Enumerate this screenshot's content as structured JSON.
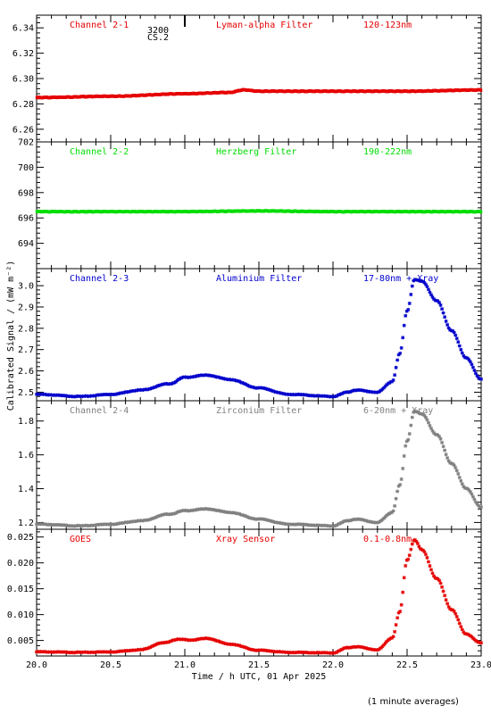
{
  "footer_note": "(1 minute averages)",
  "annotation": {
    "label_top": "3200",
    "label_bottom": "CS.2"
  },
  "shared_axes": {
    "xlabel": "Time / h UTC, 01 Apr 2025",
    "ylabel": "Calibrated Signal / (mW m⁻²)",
    "xlim": [
      20.0,
      23.0
    ],
    "xticks": [
      "20.0",
      "20.5",
      "21.0",
      "21.5",
      "22.0",
      "22.5",
      "23.0"
    ]
  },
  "chart_data": [
    {
      "type": "scatter",
      "title": "Lyman-alpha Filter",
      "channel": "Channel 2-1",
      "band": "120-123nm",
      "color": "#e60000",
      "ylim": [
        6.25,
        6.35
      ],
      "yticks": [
        "6.26",
        "6.28",
        "6.30",
        "6.32",
        "6.34"
      ],
      "series": [
        {
          "x": [
            20.0,
            20.5,
            21.0,
            21.3,
            21.4,
            21.5,
            22.0,
            22.5,
            23.0
          ],
          "y": [
            6.285,
            6.286,
            6.288,
            6.289,
            6.291,
            6.29,
            6.29,
            6.29,
            6.291
          ]
        }
      ]
    },
    {
      "type": "scatter",
      "title": "Herzberg Filter",
      "channel": "Channel 2-2",
      "band": "190-222nm",
      "color": "#00dd00",
      "ylim": [
        692.0,
        702.0
      ],
      "yticks": [
        "694",
        "696",
        "698",
        "700",
        "702"
      ],
      "series": [
        {
          "x": [
            20.0,
            20.5,
            21.0,
            21.5,
            22.0,
            22.5,
            23.0
          ],
          "y": [
            696.5,
            696.5,
            696.5,
            696.55,
            696.5,
            696.5,
            696.5
          ]
        }
      ]
    },
    {
      "type": "scatter",
      "title": "Aluminium Filter",
      "channel": "Channel 2-3",
      "band": "17-80nm + Xray",
      "color": "#0000cc",
      "ylim": [
        2.46,
        3.08
      ],
      "yticks": [
        "2.5",
        "2.6",
        "2.7",
        "2.8",
        "2.9",
        "3.0"
      ],
      "series": [
        {
          "x": [
            20.0,
            20.3,
            20.5,
            20.7,
            20.9,
            21.0,
            21.15,
            21.3,
            21.5,
            21.7,
            22.0,
            22.1,
            22.15,
            22.3,
            22.4,
            22.45,
            22.5,
            22.55,
            22.6,
            22.7,
            22.8,
            22.9,
            23.0
          ],
          "y": [
            2.49,
            2.48,
            2.49,
            2.51,
            2.54,
            2.57,
            2.58,
            2.56,
            2.52,
            2.49,
            2.48,
            2.5,
            2.51,
            2.5,
            2.55,
            2.68,
            2.88,
            3.03,
            3.02,
            2.93,
            2.79,
            2.66,
            2.56
          ]
        }
      ]
    },
    {
      "type": "scatter",
      "title": "Zirconium Filter",
      "channel": "Channel 2-4",
      "band": "6-20nm + Xray",
      "color": "#808080",
      "ylim": [
        1.16,
        1.92
      ],
      "yticks": [
        "1.2",
        "1.4",
        "1.6",
        "1.8"
      ],
      "series": [
        {
          "x": [
            20.0,
            20.3,
            20.5,
            20.7,
            20.9,
            21.0,
            21.15,
            21.3,
            21.5,
            21.7,
            22.0,
            22.1,
            22.15,
            22.3,
            22.4,
            22.45,
            22.5,
            22.55,
            22.6,
            22.7,
            22.8,
            22.9,
            23.0
          ],
          "y": [
            1.19,
            1.18,
            1.19,
            1.21,
            1.25,
            1.27,
            1.28,
            1.26,
            1.22,
            1.19,
            1.18,
            1.21,
            1.22,
            1.2,
            1.26,
            1.42,
            1.68,
            1.86,
            1.84,
            1.72,
            1.55,
            1.4,
            1.29
          ]
        }
      ]
    },
    {
      "type": "scatter",
      "title": "Xray Sensor",
      "channel": "GOES",
      "band": "0.1-0.8nm",
      "color": "#e60000",
      "ylim": [
        0.002,
        0.0265
      ],
      "yticks": [
        "0.005",
        "0.010",
        "0.015",
        "0.020",
        "0.025"
      ],
      "series": [
        {
          "x": [
            20.0,
            20.3,
            20.5,
            20.7,
            20.85,
            20.95,
            21.05,
            21.15,
            21.3,
            21.5,
            21.7,
            22.0,
            22.1,
            22.15,
            22.3,
            22.4,
            22.45,
            22.5,
            22.55,
            22.6,
            22.7,
            22.8,
            22.9,
            23.0
          ],
          "y": [
            0.0028,
            0.0027,
            0.0028,
            0.0032,
            0.0045,
            0.0052,
            0.0051,
            0.0054,
            0.0043,
            0.0031,
            0.0027,
            0.0026,
            0.0036,
            0.0038,
            0.0032,
            0.0055,
            0.0105,
            0.0205,
            0.0245,
            0.0225,
            0.017,
            0.011,
            0.0062,
            0.0045
          ]
        }
      ]
    }
  ]
}
